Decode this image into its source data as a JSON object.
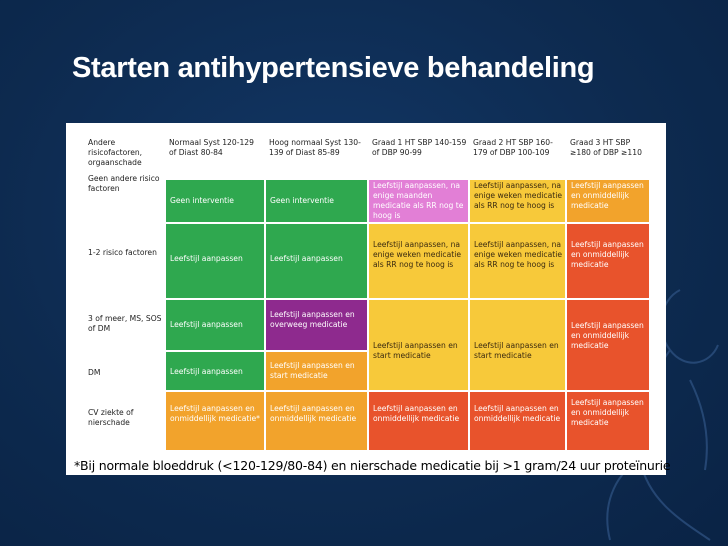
{
  "title": "Starten antihypertensieve behandeling",
  "colors": {
    "background": "#0d2a4f",
    "green": "#2fa84f",
    "purple": "#8e2a8e",
    "pink": "#e27fd6",
    "yellow": "#f7c93a",
    "orange": "#f2a32c",
    "red": "#e8532c"
  },
  "table": {
    "headers": [
      "Andere risicofactoren, orgaanschade",
      "Normaal Syst 120-129 of Diast 80-84",
      "Hoog normaal Syst 130-139 of Diast 85-89",
      "Graad 1 HT SBP 140-159 of DBP 90-99",
      "Graad 2 HT SBP 160-179 of DBP 100-109",
      "Graad 3 HT SBP ≥180 of DBP ≥110"
    ],
    "row_labels": [
      "Geen andere risico factoren",
      "1-2 risico factoren",
      "3 of meer, MS, SOS of DM",
      "DM",
      "CV ziekte of nierschade"
    ],
    "cells": {
      "r1_normaal": "Geen interventie",
      "r1_hoog": "Geen interventie",
      "r1_g1": "Leefstijl aanpassen, na enige maanden medicatie als RR nog te hoog is",
      "r1_g2": "Leefstijl aanpassen, na enige weken medicatie als RR nog te hoog is",
      "r1_g3": "Leefstijl aanpassen en onmiddellijk medicatie",
      "r2_normaal": "Leefstijl aanpassen",
      "r2_hoog": "Leefstijl aanpassen",
      "r2_g1": "Leefstijl aanpassen, na enige weken medicatie als RR nog te hoog is",
      "r2_g2": "Leefstijl aanpassen, na enige weken medicatie als RR nog te hoog is",
      "r2_g3": "Leefstijl aanpassen en onmiddellijk medicatie",
      "r3_normaal": "Leefstijl aanpassen",
      "r3_hoog": "Leefstijl aanpassen en overweeg medicatie",
      "r34_g1": "Leefstijl aanpassen en start medicatie",
      "r34_g2": "Leefstijl aanpassen en start medicatie",
      "r34_g3": "Leefstijl aanpassen en onmiddellijk medicatie",
      "r4_normaal": "Leefstijl aanpassen",
      "r4_hoog": "Leefstijl aanpassen en start medicatie",
      "r5_normaal": "Leefstijl aanpassen en onmiddellijk medicatie*",
      "r5_hoog": "Leefstijl aanpassen en onmiddellijk medicatie",
      "r5_g1": "Leefstijl aanpassen en onmiddellijk medicatie",
      "r5_g2": "Leefstijl aanpassen en onmiddellijk medicatie",
      "r5_g3": "Leefstijl aanpassen en onmiddellijk medicatie"
    }
  },
  "footnote": "*Bij normale bloeddruk (<120-129/80-84) en nierschade medicatie bij >1 gram/24 uur proteïnurie"
}
